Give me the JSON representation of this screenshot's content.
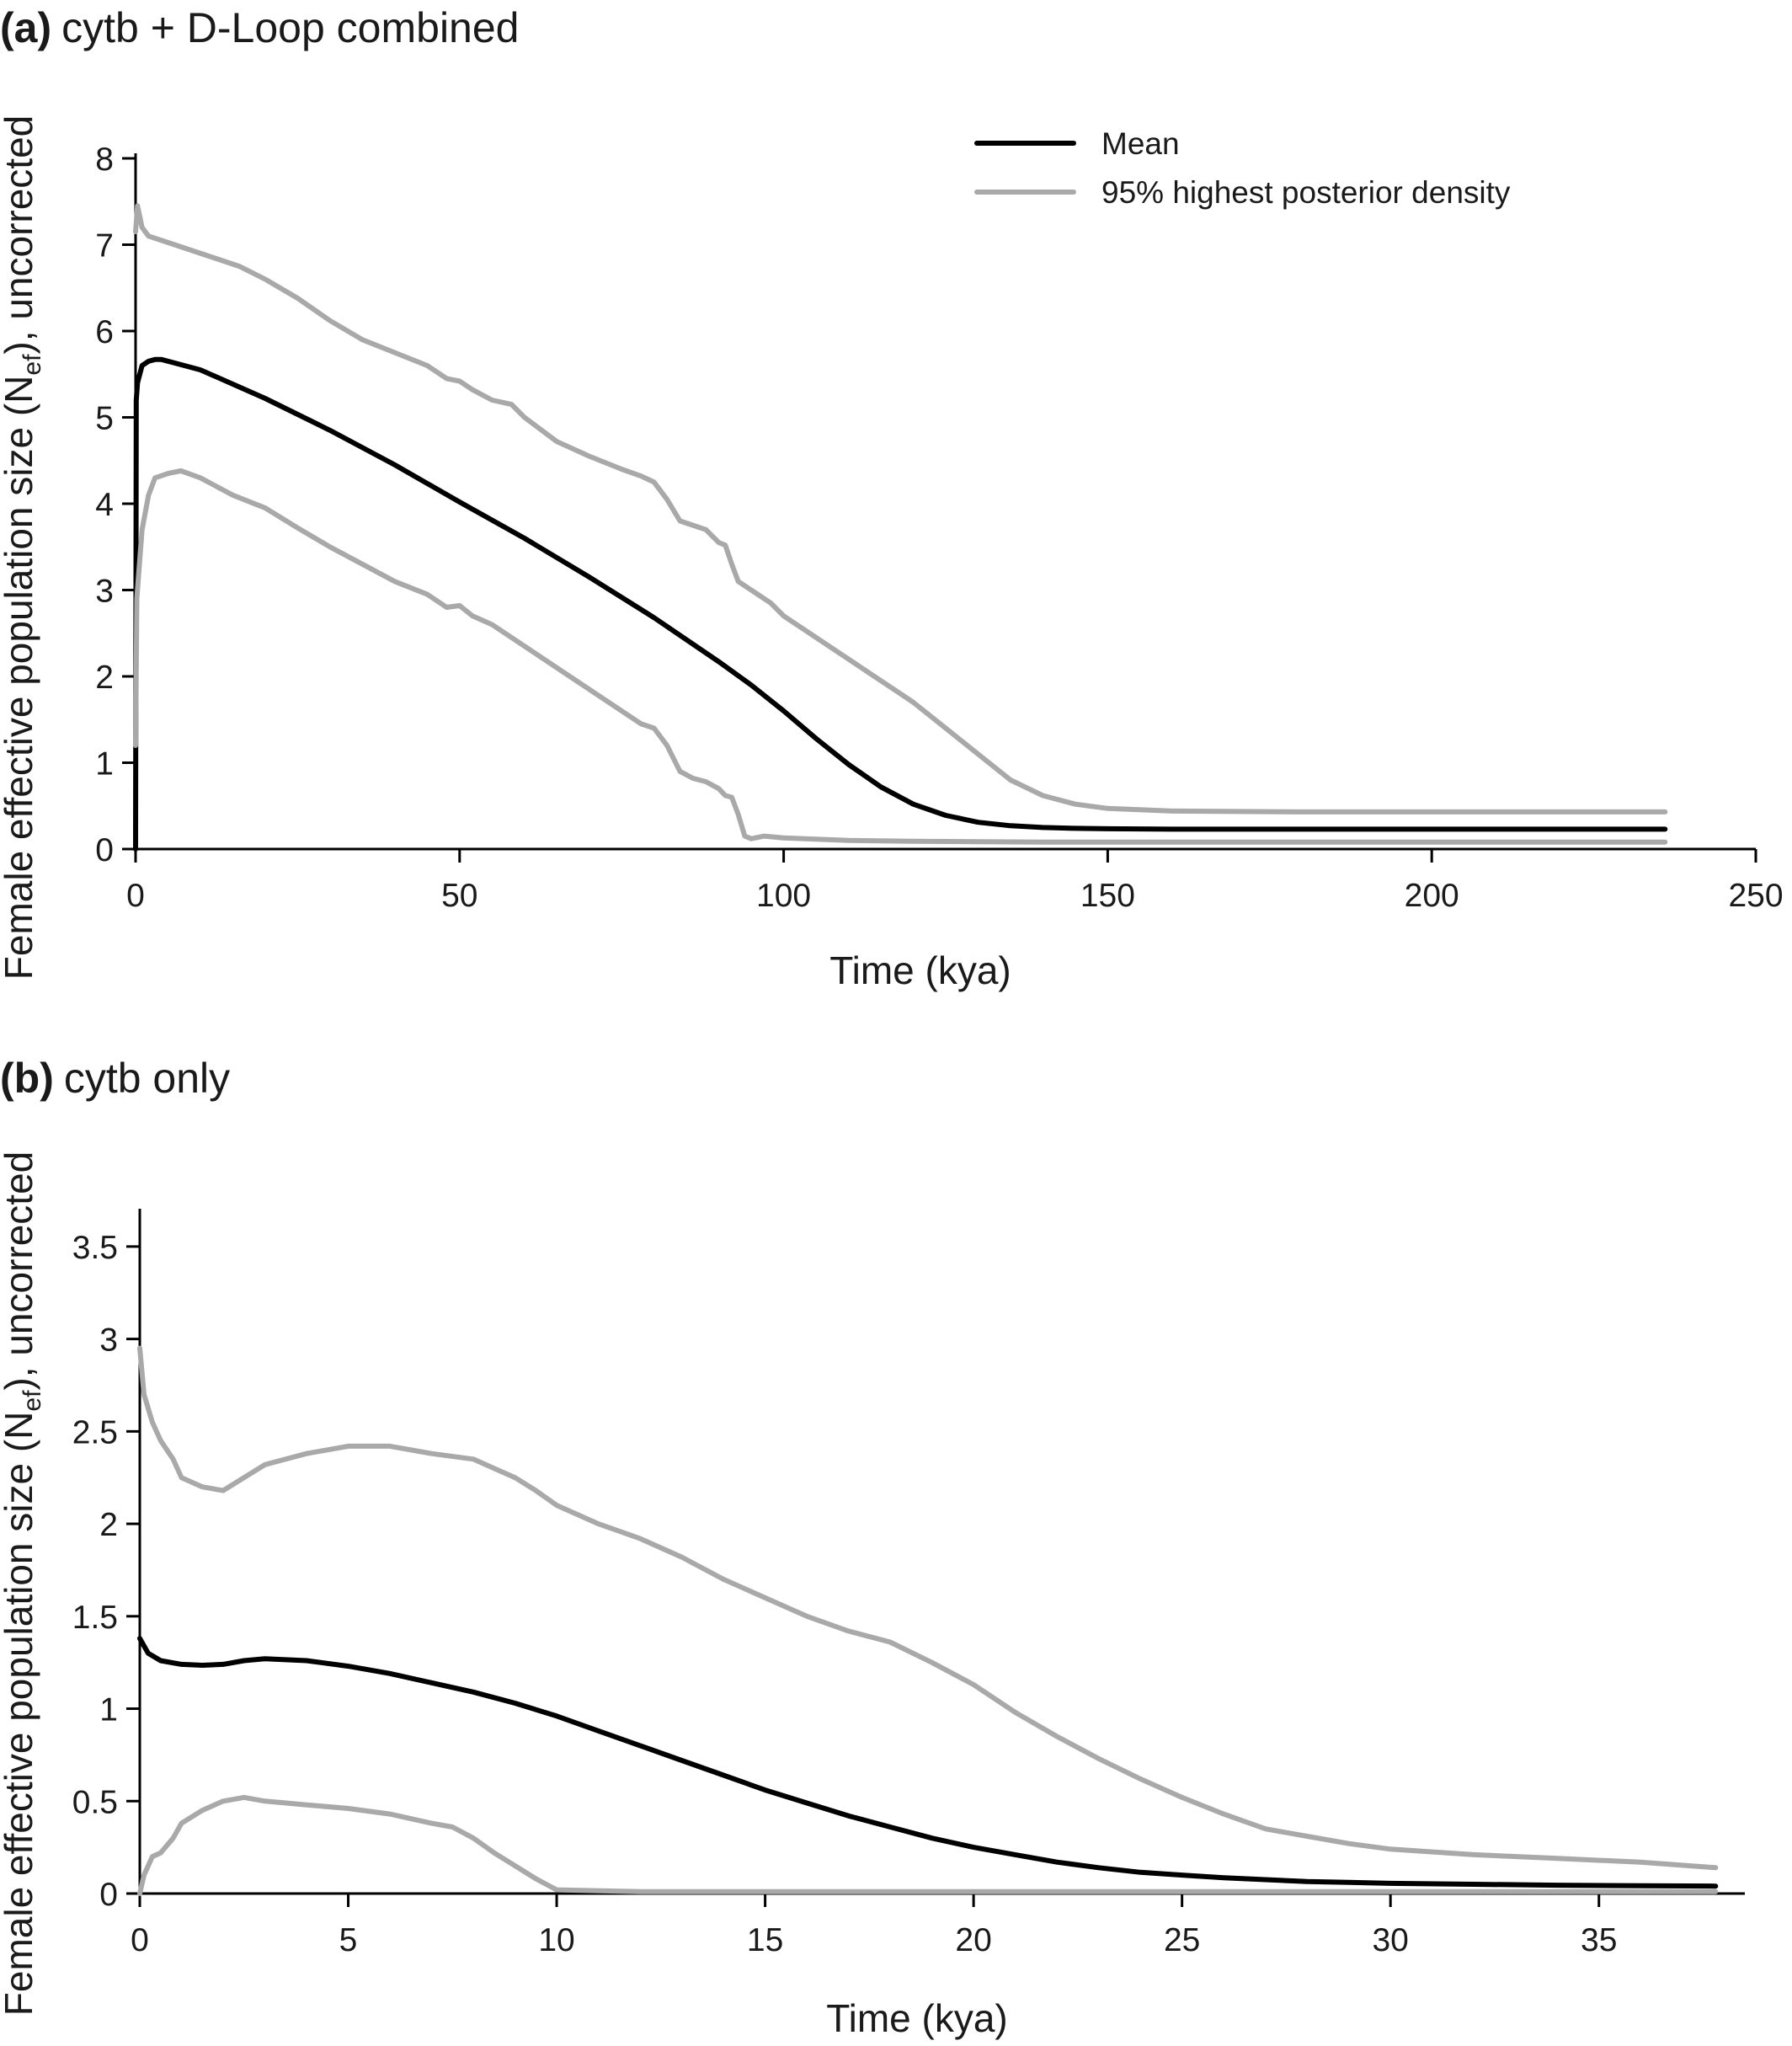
{
  "figure": {
    "background": "#ffffff",
    "mean_color": "#000000",
    "hpd_color": "#a9a9a9"
  },
  "chart_data": [
    {
      "type": "line",
      "panel_letter": "(a)",
      "title": "cytb + D-Loop combined",
      "xlabel": "Time (kya)",
      "ylabel_main": "Female effective population size (N",
      "ylabel_sub": "ef",
      "ylabel_tail": "), uncorrected",
      "xlim": [
        0,
        250
      ],
      "ylim": [
        0,
        8
      ],
      "x_ticks": [
        0,
        50,
        100,
        150,
        200,
        250
      ],
      "y_ticks": [
        0,
        1,
        2,
        3,
        4,
        5,
        6,
        7,
        8
      ],
      "x_tick_labels": [
        "0",
        "50",
        "100",
        "150",
        "200",
        "250"
      ],
      "y_tick_labels": [
        "0",
        "1",
        "2",
        "3",
        "4",
        "5",
        "6",
        "7",
        "8"
      ],
      "legend": {
        "position": "top-right",
        "entries": [
          "Mean",
          "95% highest posterior density"
        ]
      },
      "series": [
        {
          "name": "Mean",
          "role": "mean",
          "x": [
            0,
            0.1,
            0.3,
            1,
            2,
            3,
            4,
            6,
            10,
            20,
            30,
            40,
            50,
            60,
            70,
            80,
            90,
            95,
            100,
            105,
            110,
            115,
            120,
            125,
            130,
            135,
            140,
            145,
            150,
            160,
            180,
            200,
            236
          ],
          "y": [
            0,
            5.2,
            5.4,
            5.6,
            5.65,
            5.67,
            5.67,
            5.63,
            5.55,
            5.22,
            4.85,
            4.45,
            4.02,
            3.6,
            3.15,
            2.68,
            2.17,
            1.9,
            1.6,
            1.28,
            0.98,
            0.72,
            0.52,
            0.39,
            0.31,
            0.27,
            0.25,
            0.24,
            0.235,
            0.23,
            0.23,
            0.23,
            0.23
          ]
        },
        {
          "name": "95% highest posterior density (upper)",
          "role": "hpd",
          "x": [
            0,
            0.3,
            1,
            2,
            4,
            8,
            12,
            16,
            20,
            25,
            30,
            35,
            40,
            45,
            48,
            50,
            52,
            55,
            58,
            60,
            65,
            70,
            75,
            78,
            80,
            82,
            84,
            86,
            88,
            90,
            91,
            92,
            93,
            94,
            96,
            98,
            100,
            105,
            110,
            115,
            120,
            125,
            130,
            135,
            140,
            145,
            150,
            160,
            180,
            200,
            236
          ],
          "y": [
            7.15,
            7.45,
            7.2,
            7.1,
            7.05,
            6.95,
            6.85,
            6.75,
            6.6,
            6.38,
            6.12,
            5.9,
            5.75,
            5.6,
            5.45,
            5.42,
            5.32,
            5.2,
            5.15,
            5.0,
            4.72,
            4.55,
            4.4,
            4.32,
            4.25,
            4.05,
            3.8,
            3.75,
            3.7,
            3.55,
            3.52,
            3.3,
            3.1,
            3.05,
            2.95,
            2.85,
            2.7,
            2.45,
            2.2,
            1.95,
            1.7,
            1.4,
            1.1,
            0.8,
            0.62,
            0.52,
            0.47,
            0.44,
            0.43,
            0.43,
            0.43
          ]
        },
        {
          "name": "95% highest posterior density (lower)",
          "role": "hpd",
          "x": [
            0,
            0.2,
            0.5,
            1,
            2,
            3,
            5,
            7,
            10,
            15,
            20,
            25,
            30,
            35,
            40,
            45,
            48,
            50,
            52,
            55,
            60,
            65,
            70,
            75,
            78,
            80,
            82,
            84,
            86,
            88,
            90,
            91,
            92,
            93,
            94,
            95,
            97,
            100,
            110,
            120,
            140,
            160,
            200,
            236
          ],
          "y": [
            1.2,
            2.9,
            3.2,
            3.7,
            4.1,
            4.3,
            4.35,
            4.38,
            4.3,
            4.1,
            3.95,
            3.72,
            3.5,
            3.3,
            3.1,
            2.95,
            2.8,
            2.82,
            2.7,
            2.6,
            2.35,
            2.1,
            1.85,
            1.6,
            1.45,
            1.4,
            1.2,
            0.9,
            0.82,
            0.78,
            0.7,
            0.62,
            0.6,
            0.4,
            0.15,
            0.12,
            0.15,
            0.13,
            0.1,
            0.09,
            0.08,
            0.08,
            0.08,
            0.08
          ]
        }
      ]
    },
    {
      "type": "line",
      "panel_letter": "(b)",
      "title": "cytb only",
      "xlabel": "Time (kya)",
      "ylabel_main": "Female effective population size (N",
      "ylabel_sub": "ef",
      "ylabel_tail": "), uncorrected",
      "xlim": [
        0,
        38.5
      ],
      "ylim": [
        0,
        3.7
      ],
      "x_ticks": [
        0,
        5,
        10,
        15,
        20,
        25,
        30,
        35
      ],
      "y_ticks": [
        0,
        0.5,
        1,
        1.5,
        2,
        2.5,
        3,
        3.5
      ],
      "x_tick_labels": [
        "0",
        "5",
        "10",
        "15",
        "20",
        "25",
        "30",
        "35"
      ],
      "y_tick_labels": [
        "0",
        "0.5",
        "1",
        "1.5",
        "2",
        "2.5",
        "3",
        "3.5"
      ],
      "series": [
        {
          "name": "Mean",
          "role": "mean",
          "x": [
            0,
            0.2,
            0.5,
            1,
            1.5,
            2,
            2.5,
            3,
            4,
            5,
            6,
            7,
            8,
            9,
            10,
            11,
            12,
            13,
            14,
            15,
            16,
            17,
            18,
            19,
            20,
            21,
            22,
            23,
            24,
            25,
            26,
            27,
            28,
            29,
            30,
            32,
            34,
            36,
            37.8
          ],
          "y": [
            1.38,
            1.3,
            1.26,
            1.24,
            1.235,
            1.24,
            1.26,
            1.27,
            1.26,
            1.23,
            1.19,
            1.14,
            1.09,
            1.03,
            0.96,
            0.88,
            0.8,
            0.72,
            0.64,
            0.56,
            0.49,
            0.42,
            0.36,
            0.3,
            0.25,
            0.21,
            0.17,
            0.14,
            0.115,
            0.1,
            0.085,
            0.075,
            0.065,
            0.06,
            0.055,
            0.05,
            0.045,
            0.042,
            0.04
          ]
        },
        {
          "name": "95% highest posterior density (upper)",
          "role": "hpd",
          "x": [
            0,
            0.1,
            0.3,
            0.5,
            0.8,
            1,
            1.5,
            2,
            2.5,
            3,
            4,
            5,
            6,
            7,
            8,
            8.5,
            9,
            9.5,
            10,
            11,
            12,
            13,
            14,
            15,
            16,
            17,
            18,
            19,
            20,
            21,
            22,
            23,
            24,
            25,
            26,
            27,
            28,
            29,
            30,
            32,
            34,
            36,
            37.8
          ],
          "y": [
            2.95,
            2.7,
            2.55,
            2.45,
            2.35,
            2.25,
            2.2,
            2.18,
            2.25,
            2.32,
            2.38,
            2.42,
            2.42,
            2.38,
            2.35,
            2.3,
            2.25,
            2.18,
            2.1,
            2.0,
            1.92,
            1.82,
            1.7,
            1.6,
            1.5,
            1.42,
            1.36,
            1.25,
            1.13,
            0.98,
            0.85,
            0.73,
            0.62,
            0.52,
            0.43,
            0.35,
            0.31,
            0.27,
            0.24,
            0.21,
            0.19,
            0.17,
            0.14
          ]
        },
        {
          "name": "95% highest posterior density (lower)",
          "role": "hpd",
          "x": [
            0,
            0.1,
            0.3,
            0.5,
            0.8,
            1,
            1.5,
            2,
            2.5,
            3,
            4,
            5,
            6,
            7,
            7.5,
            8,
            8.5,
            9,
            9.5,
            10,
            12,
            15,
            20,
            25,
            30,
            37.8
          ],
          "y": [
            0,
            0.1,
            0.2,
            0.22,
            0.3,
            0.38,
            0.45,
            0.5,
            0.52,
            0.5,
            0.48,
            0.46,
            0.43,
            0.38,
            0.36,
            0.3,
            0.22,
            0.15,
            0.08,
            0.02,
            0.01,
            0.01,
            0.01,
            0.01,
            0.01,
            0.01
          ]
        }
      ]
    }
  ]
}
